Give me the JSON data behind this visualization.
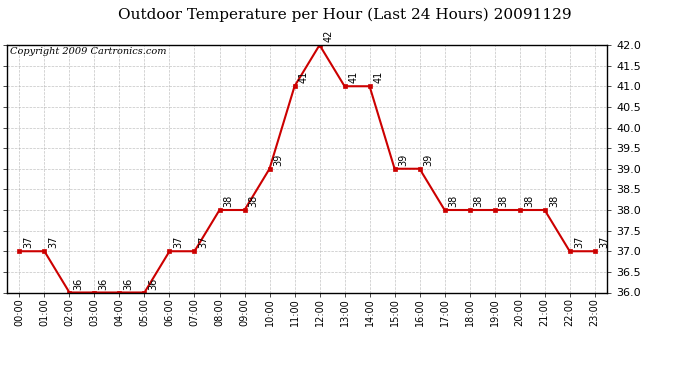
{
  "title": "Outdoor Temperature per Hour (Last 24 Hours) 20091129",
  "copyright": "Copyright 2009 Cartronics.com",
  "hours": [
    "00:00",
    "01:00",
    "02:00",
    "03:00",
    "04:00",
    "05:00",
    "06:00",
    "07:00",
    "08:00",
    "09:00",
    "10:00",
    "11:00",
    "12:00",
    "13:00",
    "14:00",
    "15:00",
    "16:00",
    "17:00",
    "18:00",
    "19:00",
    "20:00",
    "21:00",
    "22:00",
    "23:00"
  ],
  "values": [
    37,
    37,
    36,
    36,
    36,
    36,
    37,
    37,
    38,
    38,
    39,
    41,
    42,
    41,
    41,
    39,
    39,
    38,
    38,
    38,
    38,
    38,
    37,
    37
  ],
  "ylim_min": 36.0,
  "ylim_max": 42.0,
  "line_color": "#cc0000",
  "marker_color": "#cc0000",
  "grid_color": "#aaaaaa",
  "bg_color": "#ffffff",
  "title_fontsize": 11,
  "copyright_fontsize": 7,
  "label_fontsize": 7,
  "tick_fontsize": 8,
  "xtick_fontsize": 7
}
